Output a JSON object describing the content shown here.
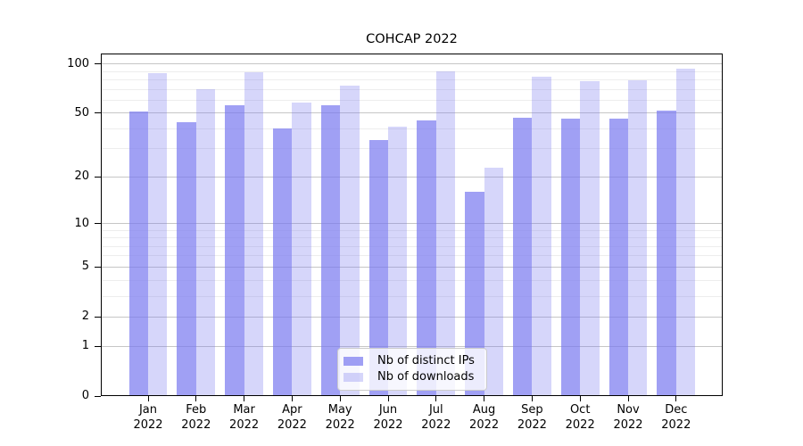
{
  "title": "COHCAP 2022",
  "colors": {
    "bar_base": "#7878f0",
    "bar_dark_rendered": "#a4a4f4",
    "bar_light_rendered": "#d9d9f9",
    "grid_major": "#c6c6c6",
    "grid_minor": "#ededed",
    "spine": "#000000",
    "tick": "#000000",
    "text": "#000000",
    "legend_border": "#cccccc"
  },
  "chart_data": {
    "type": "bar",
    "title": "COHCAP 2022",
    "categories": [
      "Jan 2022",
      "Feb 2022",
      "Mar 2022",
      "Apr 2022",
      "May 2022",
      "Jun 2022",
      "Jul 2022",
      "Aug 2022",
      "Sep 2022",
      "Oct 2022",
      "Nov 2022",
      "Dec 2022"
    ],
    "series": [
      {
        "key": "distinct-ips",
        "name": "Nb of distinct IPs",
        "color": "#7878f0",
        "opacity": 0.7,
        "values": [
          51,
          44,
          56,
          40,
          56,
          34,
          45,
          16,
          47,
          46,
          46,
          52
        ]
      },
      {
        "key": "downloads",
        "name": "Nb of downloads",
        "color": "#7878f0",
        "opacity": 0.3,
        "values": [
          88,
          70,
          89,
          58,
          74,
          41,
          90,
          23,
          83,
          78,
          79,
          93
        ]
      }
    ],
    "y_axis": {
      "scale": "symlog: y position proportional to log10(1+value)",
      "major_ticks": [
        100,
        50,
        20,
        10,
        5,
        2,
        1,
        0
      ],
      "minor_ticks": [
        90,
        80,
        70,
        60,
        40,
        30,
        9,
        8,
        7,
        6,
        4,
        3
      ],
      "range": [
        0,
        117
      ],
      "grid": true
    },
    "x_axis": {
      "grid": false
    },
    "legend_position": "lower center"
  }
}
